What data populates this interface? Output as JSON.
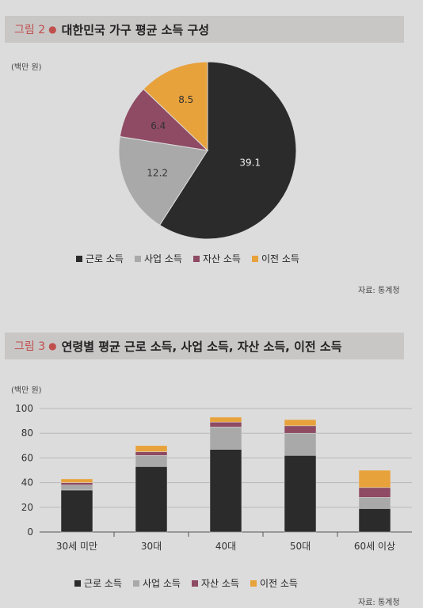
{
  "fig2": {
    "title_num": "그림 2",
    "title": "대한민국 가구 평균 소득 구성",
    "unit": "(백만 원)",
    "source": "자료: 통계청"
  },
  "fig3": {
    "title_num": "그림 3",
    "title": "연령별 평균 근로 소득, 사업 소득, 자산 소득, 이전 소득",
    "unit": "(백만 원)",
    "source": "자료: 통계청"
  },
  "legend": [
    {
      "label": "근로 소득",
      "color": "#2b2b2b"
    },
    {
      "label": "사업 소득",
      "color": "#a9a9a9"
    },
    {
      "label": "자산 소득",
      "color": "#8e4b63"
    },
    {
      "label": "이전 소득",
      "color": "#e8a23b"
    }
  ],
  "chart_data": [
    {
      "type": "pie",
      "labels": [
        "근로 소득",
        "사업 소득",
        "자산 소득",
        "이전 소득"
      ],
      "values": [
        39.1,
        12.2,
        6.4,
        8.5
      ],
      "value_labels": [
        "39.1",
        "12.2",
        "6.4",
        "8.5"
      ],
      "ylabel": "(백만 원)",
      "legend": "bottom"
    },
    {
      "type": "bar",
      "stacked": true,
      "categories": [
        "30세 미만",
        "30대",
        "40대",
        "50대",
        "60세 이상"
      ],
      "series": [
        {
          "name": "근로 소득",
          "values": [
            34,
            53,
            67,
            62,
            19
          ]
        },
        {
          "name": "사업 소득",
          "values": [
            4,
            9,
            18,
            18,
            9
          ]
        },
        {
          "name": "자산 소득",
          "values": [
            2,
            3,
            4,
            6,
            8
          ]
        },
        {
          "name": "이전 소득",
          "values": [
            3,
            5,
            4,
            5,
            14
          ]
        }
      ],
      "ylabel": "(백만 원)",
      "ylim": [
        0,
        100
      ],
      "yticks": [
        0,
        20,
        40,
        60,
        80,
        100
      ],
      "grid": true,
      "legend": "bottom"
    }
  ]
}
